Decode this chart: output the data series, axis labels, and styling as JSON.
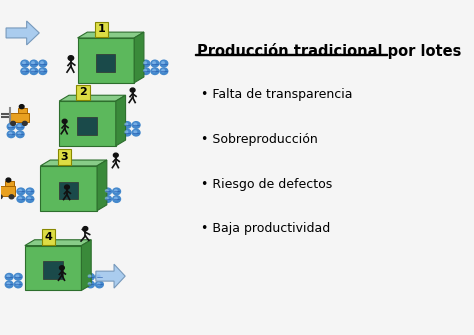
{
  "title": "Producción tradicional por lotes",
  "bullets": [
    "Falta de transparencia",
    "Sobreproducción",
    "Riesgo de defectos",
    "Baja productividad"
  ],
  "box_color": "#5cb85c",
  "box_dark": "#3a8a3a",
  "box_border": "#2d6e2d",
  "box_top": "#88cc88",
  "label_bg": "#dddd44",
  "barrel_color": "#4488cc",
  "barrel_highlight": "#88bbee",
  "barrel_line": "#2255aa",
  "forklift_color": "#e8a020",
  "forklift_border": "#aa6600",
  "arrow_color": "#aaccee",
  "arrow_edge": "#7799bb",
  "text_color": "#000000",
  "title_fontsize": 10.5,
  "bullet_fontsize": 9.0,
  "figure_bg": "#f5f5f5",
  "window_color": "#1a4a4a"
}
